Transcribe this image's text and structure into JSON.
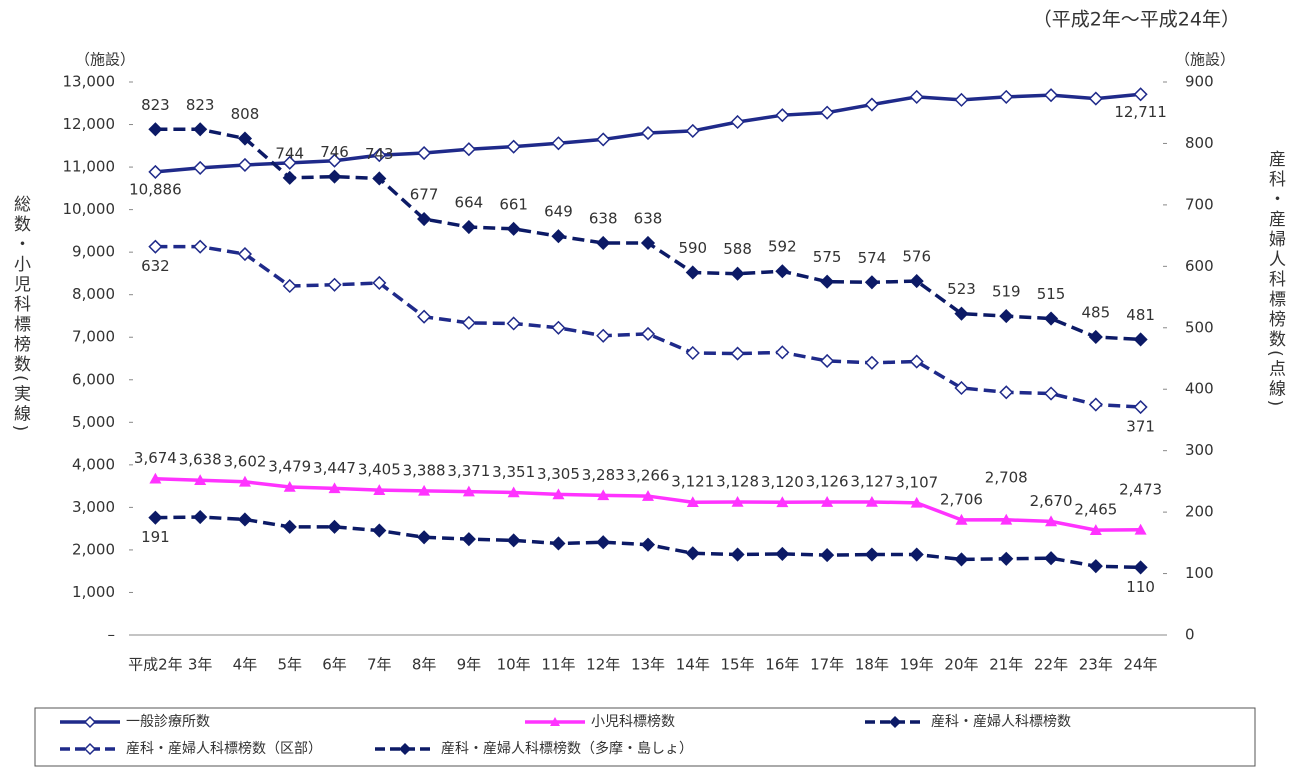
{
  "chart_data": {
    "type": "line",
    "subtitle": "（平成2年～平成24年）",
    "y_unit": "（施設）",
    "y2_unit": "（施設）",
    "y_label": "総数・小児科標榜数(実線)",
    "y2_label": "産科・産婦人科標榜数(点線)",
    "categories": [
      "平成2年",
      "3年",
      "4年",
      "5年",
      "6年",
      "7年",
      "8年",
      "9年",
      "10年",
      "11年",
      "12年",
      "13年",
      "14年",
      "15年",
      "16年",
      "17年",
      "18年",
      "19年",
      "20年",
      "21年",
      "22年",
      "23年",
      "24年"
    ],
    "ylim": [
      0,
      13000
    ],
    "yticks": [
      {
        "value": 0,
        "label": "–"
      },
      {
        "value": 1000,
        "label": "1,000"
      },
      {
        "value": 2000,
        "label": "2,000"
      },
      {
        "value": 3000,
        "label": "3,000"
      },
      {
        "value": 4000,
        "label": "4,000"
      },
      {
        "value": 5000,
        "label": "5,000"
      },
      {
        "value": 6000,
        "label": "6,000"
      },
      {
        "value": 7000,
        "label": "7,000"
      },
      {
        "value": 8000,
        "label": "8,000"
      },
      {
        "value": 9000,
        "label": "9,000"
      },
      {
        "value": 10000,
        "label": "10,000"
      },
      {
        "value": 11000,
        "label": "11,000"
      },
      {
        "value": 12000,
        "label": "12,000"
      },
      {
        "value": 13000,
        "label": "13,000"
      }
    ],
    "y2lim": [
      0,
      900
    ],
    "y2ticks": [
      0,
      100,
      200,
      300,
      400,
      500,
      600,
      700,
      800,
      900
    ],
    "series": [
      {
        "name": "一般診療所数",
        "color": "#1f2a8a",
        "dash": false,
        "marker": "diamond-open",
        "values": [
          10886,
          10980,
          11050,
          11100,
          11150,
          11280,
          11330,
          11420,
          11480,
          11560,
          11650,
          11800,
          11850,
          12060,
          12220,
          12280,
          12470,
          12650,
          12580,
          12650,
          12690,
          12610,
          12711
        ],
        "value_labels": [
          "10,886",
          null,
          null,
          null,
          null,
          null,
          null,
          null,
          null,
          null,
          null,
          null,
          null,
          null,
          null,
          null,
          null,
          null,
          null,
          null,
          null,
          null,
          "12,711"
        ]
      },
      {
        "name": "小児科標榜数",
        "color": "#ff33ff",
        "dash": false,
        "marker": "triangle",
        "values": [
          3674,
          3638,
          3602,
          3479,
          3447,
          3405,
          3388,
          3371,
          3351,
          3305,
          3283,
          3266,
          3121,
          3128,
          3120,
          3126,
          3127,
          3107,
          2706,
          2708,
          2670,
          2465,
          2473
        ],
        "value_labels": [
          "3,674",
          "3,638",
          "3,602",
          "3,479",
          "3,447",
          "3,405",
          "3,388",
          "3,371",
          "3,351",
          "3,305",
          "3,283",
          "3,266",
          "3,121",
          "3,128",
          "3,120",
          "3,126",
          "3,127",
          "3,107",
          "2,706",
          "2,708",
          "2,670",
          "2,465",
          "2,473"
        ]
      },
      {
        "name": "産科・産婦人科標榜数",
        "color": "#0c1a66",
        "dash": true,
        "marker": "diamond",
        "axis": "y2",
        "values": [
          823,
          823,
          808,
          744,
          746,
          743,
          677,
          664,
          661,
          649,
          638,
          638,
          590,
          588,
          592,
          575,
          574,
          576,
          523,
          519,
          515,
          485,
          481
        ],
        "value_labels": [
          "823",
          "823",
          "808",
          "744",
          "746",
          "743",
          "677",
          "664",
          "661",
          "649",
          "638",
          "638",
          "590",
          "588",
          "592",
          "575",
          "574",
          "576",
          "523",
          "519",
          "515",
          "485",
          "481"
        ]
      },
      {
        "name": "産科・産婦人科標榜数（区部）",
        "color": "#1f2a8a",
        "dash": true,
        "marker": "diamond-open",
        "axis": "y2",
        "values": [
          632,
          632,
          620,
          568,
          570,
          573,
          518,
          508,
          507,
          500,
          487,
          490,
          459,
          458,
          460,
          446,
          443,
          445,
          402,
          395,
          393,
          375,
          371
        ],
        "value_labels": [
          "632",
          null,
          null,
          null,
          null,
          null,
          null,
          null,
          null,
          null,
          null,
          null,
          null,
          null,
          null,
          null,
          null,
          null,
          null,
          null,
          null,
          null,
          "371"
        ]
      },
      {
        "name": "産科・産婦人科標榜数（多摩・島しょ）",
        "color": "#0c1a66",
        "dash": true,
        "marker": "diamond",
        "axis": "y2",
        "values": [
          191,
          192,
          188,
          176,
          176,
          170,
          159,
          156,
          154,
          149,
          151,
          147,
          133,
          131,
          132,
          130,
          131,
          131,
          123,
          124,
          125,
          112,
          110
        ],
        "value_labels": [
          "191",
          null,
          null,
          null,
          null,
          null,
          null,
          null,
          null,
          null,
          null,
          null,
          null,
          null,
          null,
          null,
          null,
          null,
          null,
          null,
          null,
          null,
          "110"
        ]
      }
    ]
  }
}
